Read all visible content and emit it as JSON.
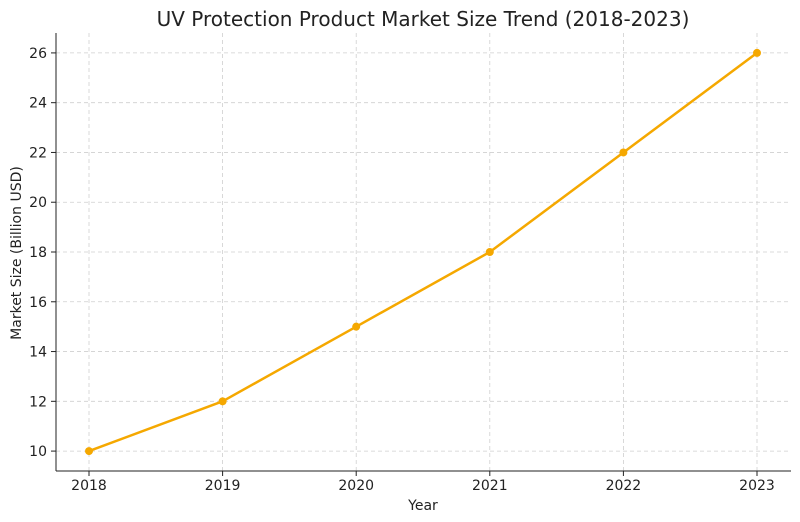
{
  "chart_data": {
    "type": "line",
    "title": "UV Protection Product Market Size Trend (2018-2023)",
    "xlabel": "Year",
    "ylabel": "Market Size (Billion USD)",
    "x": [
      "2018",
      "2019",
      "2020",
      "2021",
      "2022",
      "2023"
    ],
    "series": [
      {
        "values": [
          10,
          12,
          15,
          18,
          22,
          26
        ],
        "color": "#f5a800"
      }
    ],
    "yticks": [
      10,
      12,
      14,
      16,
      18,
      20,
      22,
      24,
      26
    ],
    "ylim": [
      9.2,
      26.8
    ],
    "grid": true,
    "legend": "none"
  }
}
